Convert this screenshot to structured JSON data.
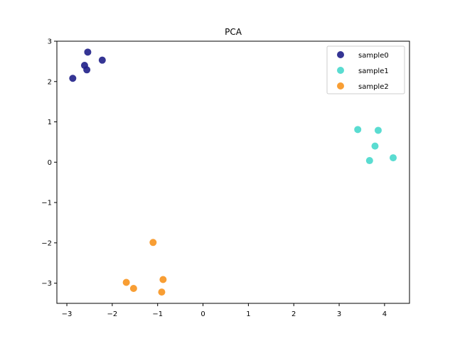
{
  "chart_data": {
    "type": "scatter",
    "title": "PCA",
    "xlabel": "",
    "ylabel": "",
    "xlim": [
      -3.22,
      4.55
    ],
    "ylim": [
      -3.5,
      3.0
    ],
    "x_ticks": [
      -3,
      -2,
      -1,
      0,
      1,
      2,
      3,
      4
    ],
    "y_ticks": [
      -3,
      -2,
      -1,
      0,
      1,
      2,
      3
    ],
    "grid": false,
    "legend_position": "top-right",
    "series": [
      {
        "name": "sample0",
        "color": "#1f1f88",
        "points": [
          {
            "x": -2.87,
            "y": 2.08
          },
          {
            "x": -2.61,
            "y": 2.4
          },
          {
            "x": -2.54,
            "y": 2.73
          },
          {
            "x": -2.56,
            "y": 2.29
          },
          {
            "x": -2.22,
            "y": 2.53
          }
        ]
      },
      {
        "name": "sample1",
        "color": "#48d8cc",
        "points": [
          {
            "x": 3.41,
            "y": 0.81
          },
          {
            "x": 3.86,
            "y": 0.79
          },
          {
            "x": 3.79,
            "y": 0.4
          },
          {
            "x": 3.67,
            "y": 0.04
          },
          {
            "x": 4.19,
            "y": 0.11
          }
        ]
      },
      {
        "name": "sample2",
        "color": "#f7931e",
        "points": [
          {
            "x": -1.1,
            "y": -1.99
          },
          {
            "x": -0.88,
            "y": -2.91
          },
          {
            "x": -1.69,
            "y": -2.98
          },
          {
            "x": -1.53,
            "y": -3.13
          },
          {
            "x": -0.91,
            "y": -3.22
          }
        ]
      }
    ]
  }
}
